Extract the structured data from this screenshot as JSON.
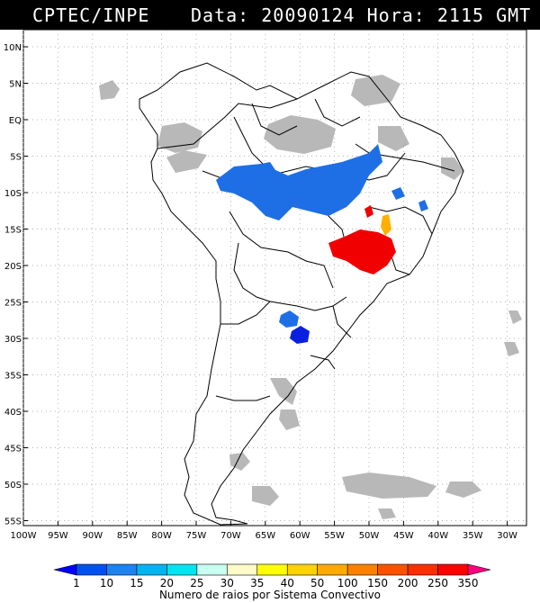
{
  "header": {
    "source": "CPTEC/INPE",
    "datetime": "Data: 20090124 Hora: 2115 GMT"
  },
  "map": {
    "lat_ticks": [
      "10N",
      "5N",
      "EQ",
      "5S",
      "10S",
      "15S",
      "20S",
      "25S",
      "30S",
      "35S",
      "40S",
      "45S",
      "50S",
      "55S"
    ],
    "lon_ticks": [
      "100W",
      "95W",
      "90W",
      "85W",
      "80W",
      "75W",
      "70W",
      "65W",
      "60W",
      "55W",
      "50W",
      "45W",
      "40W",
      "35W",
      "30W"
    ],
    "colors": {
      "land_outline": "#000000",
      "cloud": "#b0b0b0",
      "grid": "#999999"
    }
  },
  "systems": [
    {
      "name": "amazon-blue-cluster",
      "color": "#1e6fe6"
    },
    {
      "name": "southeast-red-cluster",
      "color": "#f00000"
    },
    {
      "name": "orange-cell",
      "color": "#ffb000"
    },
    {
      "name": "paraguay-dark-blue",
      "color": "#0a20e0"
    }
  ],
  "legend": {
    "title": "Numero de raios por Sistema Convectivo",
    "labels": [
      "1",
      "10",
      "15",
      "20",
      "25",
      "30",
      "35",
      "40",
      "50",
      "100",
      "150",
      "200",
      "250",
      "350"
    ],
    "colors": [
      "#0000ff",
      "#0050f0",
      "#1e82f0",
      "#00b4f0",
      "#00e6f0",
      "#c8fff0",
      "#fffac8",
      "#ffff00",
      "#ffd200",
      "#ffaa00",
      "#ff8000",
      "#ff5000",
      "#ff2d00",
      "#ff0000",
      "#ff0080"
    ]
  }
}
